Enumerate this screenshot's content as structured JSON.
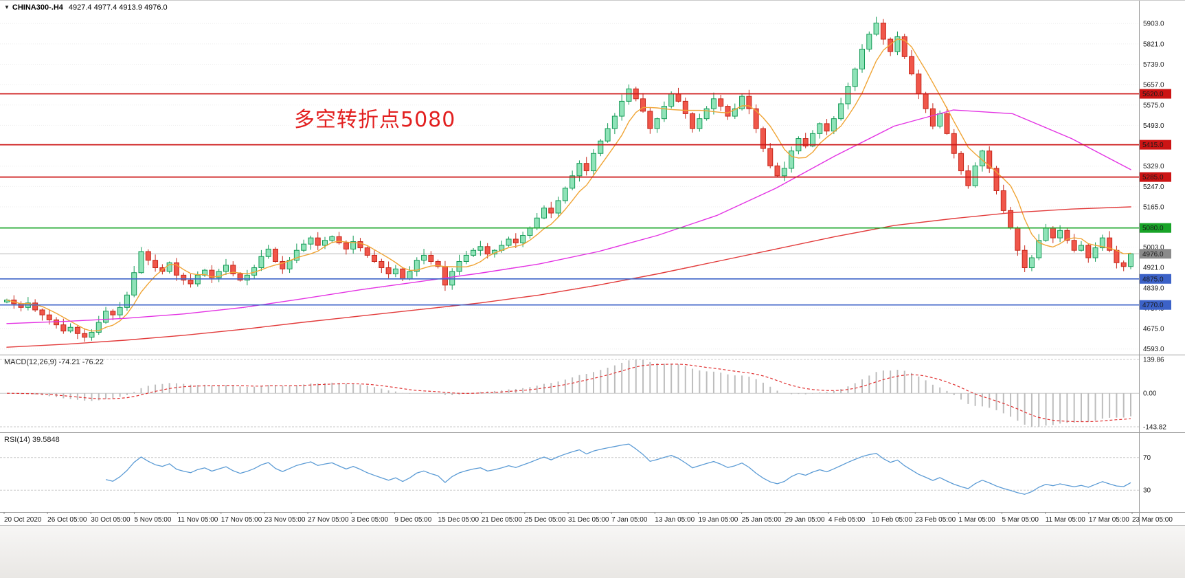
{
  "window": {
    "dropdown_icon": "▼",
    "symbol_label": "CHINA300-.H4",
    "ohlc": "4927.4 4977.4 4913.9 4976.0"
  },
  "annotation": {
    "text": "多空转折点5080",
    "color": "#e21f1f"
  },
  "colors": {
    "up_border": "#149a56",
    "up_fill": "#8fe3b8",
    "down_border": "#c6271b",
    "down_fill": "#f0564a",
    "ma_fast": "#f0a434",
    "ma_mid": "#e332e3",
    "ma_slow": "#e23a3a",
    "resistance": "#cc1414",
    "pivot": "#18a428",
    "support": "#3c62c8",
    "current": "#8a8a8a",
    "macd_hist": "#bdbdbd",
    "macd_signal": "#e03030",
    "rsi": "#5b9bd5",
    "grid": "#ededed",
    "separator": "#9a9a9a"
  },
  "chart_data": {
    "type": "candlestick",
    "title": "CHINA300-.H4",
    "symbol": "CHINA300-",
    "timeframe": "H4",
    "current_ohlc": {
      "open": 4927.4,
      "high": 4977.4,
      "low": 4913.9,
      "close": 4976.0
    },
    "ylim": [
      4570,
      5995
    ],
    "price_ticks": [
      "5903.0",
      "5821.0",
      "5739.0",
      "5657.0",
      "5575.0",
      "5493.0",
      "5329.0",
      "5247.0",
      "5165.0",
      "5003.0",
      "4921.0",
      "4839.0",
      "4757.0",
      "4675.0",
      "4593.0"
    ],
    "time_labels": [
      "20 Oct 2020",
      "26 Oct 05:00",
      "30 Oct 05:00",
      "5 Nov 05:00",
      "11 Nov 05:00",
      "17 Nov 05:00",
      "23 Nov 05:00",
      "27 Nov 05:00",
      "3 Dec 05:00",
      "9 Dec 05:00",
      "15 Dec 05:00",
      "21 Dec 05:00",
      "25 Dec 05:00",
      "31 Dec 05:00",
      "7 Jan 05:00",
      "13 Jan 05:00",
      "19 Jan 05:00",
      "25 Jan 05:00",
      "29 Jan 05:00",
      "4 Feb 05:00",
      "10 Feb 05:00",
      "23 Feb 05:00",
      "1 Mar 05:00",
      "5 Mar 05:00",
      "11 Mar 05:00",
      "17 Mar 05:00",
      "23 Mar 05:00"
    ],
    "close_path": [
      4790,
      4775,
      4760,
      4778,
      4750,
      4730,
      4710,
      4690,
      4665,
      4680,
      4655,
      4640,
      4660,
      4700,
      4745,
      4730,
      4760,
      4810,
      4900,
      4985,
      4950,
      4920,
      4905,
      4940,
      4890,
      4870,
      4855,
      4890,
      4910,
      4880,
      4905,
      4930,
      4895,
      4870,
      4890,
      4920,
      4965,
      4995,
      4945,
      4915,
      4950,
      4990,
      5015,
      5040,
      5010,
      5030,
      5045,
      5020,
      4995,
      5025,
      5000,
      4970,
      4945,
      4920,
      4895,
      4915,
      4875,
      4905,
      4950,
      4970,
      4945,
      4925,
      4850,
      4905,
      4945,
      4970,
      4990,
      5005,
      4975,
      4990,
      5010,
      5035,
      5020,
      5050,
      5080,
      5120,
      5160,
      5140,
      5190,
      5240,
      5290,
      5340,
      5310,
      5380,
      5430,
      5480,
      5530,
      5590,
      5640,
      5600,
      5550,
      5480,
      5520,
      5570,
      5620,
      5590,
      5540,
      5480,
      5520,
      5560,
      5600,
      5570,
      5530,
      5560,
      5610,
      5560,
      5480,
      5400,
      5330,
      5290,
      5320,
      5390,
      5440,
      5410,
      5460,
      5500,
      5470,
      5520,
      5580,
      5650,
      5720,
      5800,
      5860,
      5905,
      5840,
      5790,
      5850,
      5770,
      5700,
      5620,
      5560,
      5490,
      5540,
      5460,
      5380,
      5310,
      5250,
      5330,
      5390,
      5320,
      5230,
      5150,
      5080,
      4990,
      4920,
      4960,
      5030,
      5080,
      5040,
      5070,
      5030,
      4990,
      5010,
      4960,
      5000,
      5040,
      4990,
      4940,
      4925,
      4976
    ],
    "overlays": {
      "ma_fast_orange_window": 6,
      "ma_mid_magenta": [
        4695,
        4704,
        4716,
        4734,
        4760,
        4795,
        4832,
        4865,
        4898,
        4935,
        4985,
        5050,
        5130,
        5240,
        5370,
        5490,
        5555,
        5540,
        5440,
        5315
      ],
      "ma_slow_red": [
        4600,
        4612,
        4628,
        4648,
        4672,
        4700,
        4726,
        4752,
        4778,
        4810,
        4850,
        4895,
        4945,
        4995,
        5045,
        5090,
        5118,
        5142,
        5156,
        5165
      ]
    },
    "levels": [
      {
        "value": 5620.0,
        "label": "5620.0",
        "role": "resistance"
      },
      {
        "value": 5415.0,
        "label": "5415.0",
        "role": "resistance"
      },
      {
        "value": 5285.0,
        "label": "5285.0",
        "role": "resistance"
      },
      {
        "value": 5080.0,
        "label": "5080.0",
        "role": "pivot"
      },
      {
        "value": 4875.0,
        "label": "4875.0",
        "role": "support"
      },
      {
        "value": 4770.0,
        "label": "4770.0",
        "role": "support"
      }
    ],
    "current_price": {
      "value": 4976.0,
      "label": "4976.0"
    },
    "indicators": {
      "macd": {
        "name": "MACD",
        "params": "12,26,9",
        "label": "MACD(12,26,9) -74.21 -76.22",
        "values": [
          -74.21,
          -76.22
        ],
        "axis_labels": [
          "139.86",
          "0.00",
          "-143.82"
        ]
      },
      "rsi": {
        "name": "RSI",
        "params": "14",
        "label": "RSI(14) 39.5848",
        "value": 39.5848,
        "levels": [
          "70",
          "30"
        ]
      }
    }
  }
}
